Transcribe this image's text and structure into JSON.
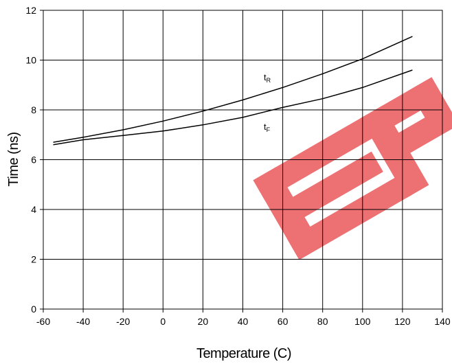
{
  "chart_data": {
    "type": "line",
    "title": "",
    "xlabel": "Temperature (C)",
    "ylabel": "Time (ns)",
    "xlim": [
      -60,
      140
    ],
    "ylim": [
      0,
      12
    ],
    "xticks": [
      -60,
      -40,
      -20,
      0,
      20,
      40,
      60,
      80,
      100,
      120,
      140
    ],
    "yticks": [
      0,
      2,
      4,
      6,
      8,
      10,
      12
    ],
    "xtick_labels": [
      "-60",
      "-40",
      "-20",
      "0",
      "20",
      "40",
      "60",
      "80",
      "100",
      "120",
      "140"
    ],
    "ytick_labels": [
      "0",
      "2",
      "4",
      "6",
      "8",
      "10",
      "12"
    ],
    "grid": true,
    "line_color": "#000000",
    "series": [
      {
        "name": "tR",
        "label_main": "t",
        "label_sub": "R",
        "x": [
          -55,
          -40,
          -20,
          0,
          20,
          40,
          60,
          80,
          100,
          125
        ],
        "y": [
          6.7,
          6.9,
          7.2,
          7.55,
          7.95,
          8.4,
          8.9,
          9.45,
          10.05,
          10.95
        ]
      },
      {
        "name": "tF",
        "label_main": "t",
        "label_sub": "F",
        "x": [
          -55,
          -40,
          -20,
          0,
          20,
          40,
          60,
          80,
          100,
          125
        ],
        "y": [
          6.6,
          6.8,
          6.97,
          7.15,
          7.4,
          7.7,
          8.1,
          8.45,
          8.9,
          9.6
        ]
      }
    ]
  }
}
